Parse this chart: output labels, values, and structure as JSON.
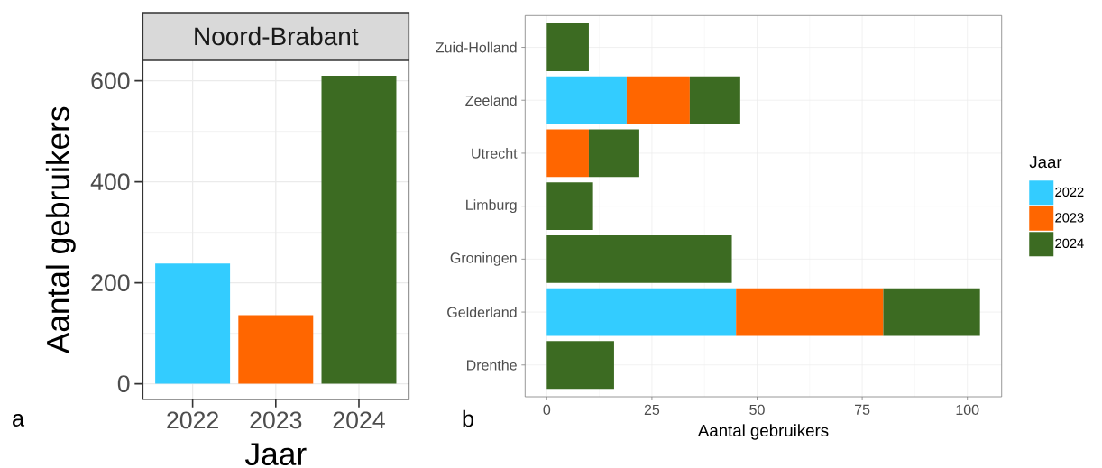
{
  "chart_data": [
    {
      "type": "bar",
      "title": "Noord-Brabant",
      "xlabel": "Jaar",
      "ylabel": "Aantal gebruikers",
      "categories": [
        "2022",
        "2023",
        "2024"
      ],
      "values": [
        238,
        136,
        610
      ],
      "colors": [
        "#33ccff",
        "#ff6600",
        "#3c6b22"
      ],
      "ylim": [
        -30.5,
        640.5
      ],
      "yticks": [
        0,
        200,
        400,
        600
      ],
      "grid": true,
      "annotations": [
        "a"
      ]
    },
    {
      "type": "bar",
      "orientation": "horizontal",
      "stacked": true,
      "xlabel": "Aantal gebruikers",
      "legend_title": "Jaar",
      "legend": "right",
      "categories": [
        "Zuid-Holland",
        "Zeeland",
        "Utrecht",
        "Limburg",
        "Groningen",
        "Gelderland",
        "Drenthe"
      ],
      "series": [
        {
          "name": "2022",
          "color": "#33ccff",
          "values": [
            null,
            19,
            null,
            null,
            null,
            45,
            null
          ]
        },
        {
          "name": "2023",
          "color": "#ff6600",
          "values": [
            null,
            15,
            10,
            null,
            null,
            35,
            null
          ]
        },
        {
          "name": "2024",
          "color": "#3c6b22",
          "values": [
            10,
            12,
            12,
            11,
            44,
            23,
            16
          ]
        }
      ],
      "xlim": [
        -5.15,
        108.15
      ],
      "xticks": [
        0,
        25,
        50,
        75,
        100
      ],
      "grid": true,
      "annotations": [
        "b"
      ]
    }
  ]
}
